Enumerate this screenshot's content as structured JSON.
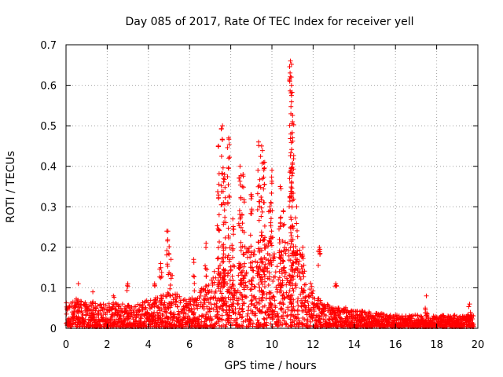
{
  "chart_data": {
    "type": "scatter",
    "title": "Day 085 of 2017, Rate Of TEC Index for receiver yell",
    "xlabel": "GPS time / hours",
    "ylabel": "ROTI / TECUs",
    "xlim": [
      0,
      20
    ],
    "ylim": [
      0,
      0.7
    ],
    "xticks": [
      0,
      2,
      4,
      6,
      8,
      10,
      12,
      14,
      16,
      18,
      20
    ],
    "yticks": [
      0,
      0.1,
      0.2,
      0.3,
      0.4,
      0.5,
      0.6,
      0.7
    ],
    "grid": true,
    "marker": "+",
    "color": "#ff0000",
    "series": [
      {
        "name": "ROTI",
        "envelope": {
          "x": [
            0.0,
            0.5,
            1.0,
            1.5,
            2.0,
            2.5,
            3.0,
            3.5,
            4.0,
            4.5,
            5.0,
            5.5,
            6.0,
            6.5,
            7.0,
            7.5,
            8.0,
            8.5,
            9.0,
            9.5,
            10.0,
            10.5,
            11.0,
            11.5,
            12.0,
            12.5,
            13.0,
            13.5,
            14.0,
            14.5,
            15.0,
            15.5,
            16.0,
            16.5,
            17.0,
            17.5,
            18.0,
            18.5,
            19.0,
            19.5,
            19.8
          ],
          "y": [
            0.06,
            0.07,
            0.06,
            0.06,
            0.06,
            0.06,
            0.06,
            0.06,
            0.07,
            0.08,
            0.09,
            0.08,
            0.08,
            0.09,
            0.12,
            0.17,
            0.18,
            0.2,
            0.2,
            0.2,
            0.22,
            0.22,
            0.22,
            0.18,
            0.09,
            0.06,
            0.05,
            0.05,
            0.04,
            0.04,
            0.035,
            0.035,
            0.03,
            0.03,
            0.03,
            0.03,
            0.03,
            0.03,
            0.03,
            0.03,
            0.03
          ]
        },
        "spikes": [
          {
            "x": 0.6,
            "y": 0.11
          },
          {
            "x": 1.3,
            "y": 0.09
          },
          {
            "x": 2.3,
            "y": 0.08
          },
          {
            "x": 3.0,
            "y": 0.11
          },
          {
            "x": 4.3,
            "y": 0.11
          },
          {
            "x": 4.6,
            "y": 0.16
          },
          {
            "x": 4.95,
            "y": 0.24
          },
          {
            "x": 5.1,
            "y": 0.17
          },
          {
            "x": 6.2,
            "y": 0.17
          },
          {
            "x": 6.8,
            "y": 0.21
          },
          {
            "x": 7.4,
            "y": 0.45
          },
          {
            "x": 7.6,
            "y": 0.5
          },
          {
            "x": 7.7,
            "y": 0.38
          },
          {
            "x": 7.9,
            "y": 0.47
          },
          {
            "x": 8.1,
            "y": 0.27
          },
          {
            "x": 8.45,
            "y": 0.4
          },
          {
            "x": 8.6,
            "y": 0.38
          },
          {
            "x": 9.0,
            "y": 0.33
          },
          {
            "x": 9.35,
            "y": 0.46
          },
          {
            "x": 9.5,
            "y": 0.45
          },
          {
            "x": 9.65,
            "y": 0.41
          },
          {
            "x": 9.9,
            "y": 0.3
          },
          {
            "x": 10.0,
            "y": 0.39
          },
          {
            "x": 10.4,
            "y": 0.35
          },
          {
            "x": 10.55,
            "y": 0.29
          },
          {
            "x": 10.9,
            "y": 0.66
          },
          {
            "x": 10.95,
            "y": 0.6
          },
          {
            "x": 11.0,
            "y": 0.51
          },
          {
            "x": 11.2,
            "y": 0.3
          },
          {
            "x": 11.5,
            "y": 0.2
          },
          {
            "x": 12.3,
            "y": 0.2
          },
          {
            "x": 13.1,
            "y": 0.11
          },
          {
            "x": 17.5,
            "y": 0.08
          },
          {
            "x": 19.6,
            "y": 0.06
          }
        ]
      }
    ]
  }
}
